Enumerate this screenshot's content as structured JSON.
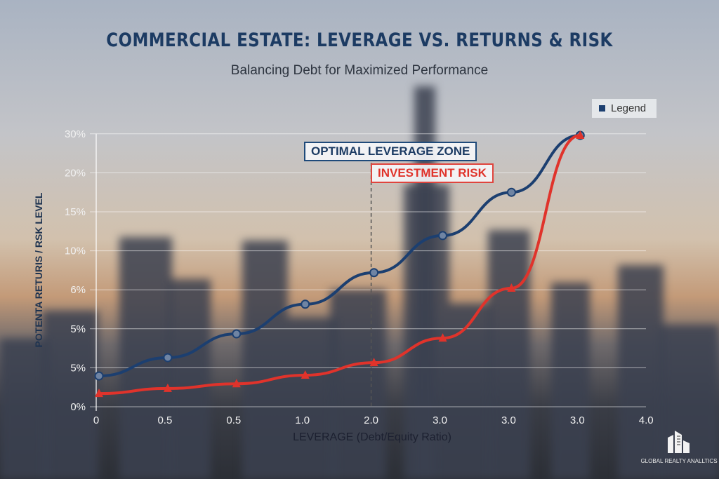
{
  "chart_data": {
    "type": "line",
    "title": "COMMERCIAL ESTATE: LEVERAGE VS. RETURNS & RISK",
    "subtitle": "Balancing Debt for Maximized Performance",
    "xlabel": "LEVERAGE (Debt/Equity Ratio)",
    "ylabel": "POTENTA RETURIS / RSK LEVEL",
    "x_tick_labels": [
      "0",
      "0.5",
      "0.5",
      "1.0",
      "2.0",
      "3.0",
      "3.0",
      "3.0",
      "4.0"
    ],
    "y_tick_labels": [
      "0%",
      "5%",
      "5%",
      "6%",
      "10%",
      "15%",
      "20%",
      "30%"
    ],
    "y_scale_note_levels": [
      0,
      1,
      2,
      3,
      4,
      5,
      6,
      7
    ],
    "grid": true,
    "legend": {
      "label": "Legend",
      "placement": "top-right"
    },
    "series": [
      {
        "name": "",
        "color": "#1c3f70",
        "marker": "circle",
        "x_tick_index": [
          0,
          1,
          2,
          3,
          4,
          5,
          6,
          7
        ],
        "y_level": [
          0.79,
          1.26,
          1.87,
          2.63,
          3.44,
          4.39,
          5.5,
          6.96
        ]
      },
      {
        "name": "",
        "color": "#e0332b",
        "marker": "triangle",
        "x_tick_index": [
          0,
          1,
          2,
          3,
          4,
          5,
          6,
          7
        ],
        "y_level": [
          0.34,
          0.47,
          0.59,
          0.81,
          1.13,
          1.76,
          3.04,
          6.96
        ]
      }
    ],
    "annotations": [
      {
        "text": "OPTIMAL LEVERAGE ZONE",
        "color": "#1c3b63"
      },
      {
        "text": "INVESTMENT RISK",
        "color": "#e0332b"
      }
    ],
    "vline_at_x_tick_index": 4
  },
  "logo": {
    "text": "GLOBAL REALTY ANALLTICS"
  }
}
